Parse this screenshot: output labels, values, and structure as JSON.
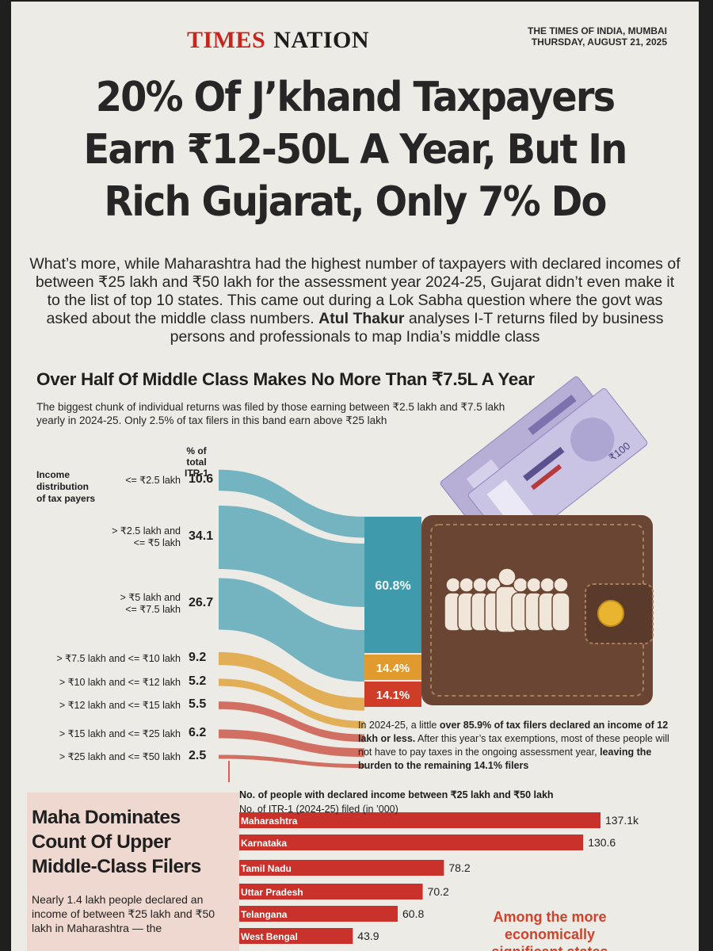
{
  "masthead": {
    "section_red": "TIMES",
    "section_black": "NATION"
  },
  "dateline": {
    "line1": "THE TIMES OF INDIA, MUMBAI",
    "line2": "THURSDAY, AUGUST 21, 2025"
  },
  "headline": {
    "line1": "20% Of J’khand Taxpayers",
    "line2": "Earn ₹12-50L A Year, But In",
    "line3": "Rich Gujarat, Only 7% Do"
  },
  "deck": {
    "part1": "What’s more, while Maharashtra had the highest number of taxpayers with declared incomes of between ₹25 lakh and ₹50 lakh for the assessment year 2024-25, Gujarat didn’t even make it to the list of top 10 states. This came out during a Lok Sabha question where the govt was asked about the middle class numbers. ",
    "author": "Atul Thakur",
    "part2": " analyses I-T returns filed by business persons and professionals to map India’s middle class"
  },
  "section": {
    "title": "Over Half Of Middle Class Makes No More Than ₹7.5L A Year",
    "subtitle": "The biggest chunk of individual returns was filed by those earning between ₹2.5 lakh and ₹7.5 lakh yearly in 2024-25. Only 2.5% of tax filers in this band earn above ₹25 lakh"
  },
  "flow_chart": {
    "axis_header_line1": "% of total",
    "axis_header_line2": "ITR-1",
    "side_label_line1": "Income",
    "side_label_line2": "distribution",
    "side_label_line3": "of tax payers"
  },
  "chart_data": [
    {
      "type": "bar",
      "title": "Over Half Of Middle Class Makes No More Than ₹7.5L A Year",
      "ylabel": "% of total ITR-1",
      "categories": [
        "<= ₹2.5 lakh",
        "> ₹2.5 lakh and <= ₹5 lakh",
        "> ₹5 lakh and <= ₹7.5 lakh",
        "> ₹7.5 lakh and <= ₹10 lakh",
        "> ₹10 lakh and <= ₹12 lakh",
        "> ₹12 lakh and <= ₹15 lakh",
        "> ₹15 lakh and <= ₹25 lakh",
        "> ₹25 lakh and <= ₹50 lakh"
      ],
      "value_labels": [
        "10.6",
        "34.1",
        "26.7",
        "9.2",
        "5.2",
        "5.5",
        "6.2",
        "2.5"
      ],
      "values": [
        10.6,
        34.1,
        26.7,
        9.2,
        5.2,
        5.5,
        6.2,
        2.5
      ],
      "label_lines": [
        [
          "<= ₹2.5 lakh"
        ],
        [
          "> ₹2.5 lakh and",
          "<= ₹5 lakh"
        ],
        [
          "> ₹5 lakh and",
          "<= ₹7.5 lakh"
        ],
        [
          "> ₹7.5 lakh and <= ₹10 lakh"
        ],
        [
          "> ₹10 lakh and <= ₹12 lakh"
        ],
        [
          "> ₹12 lakh and <= ₹15 lakh"
        ],
        [
          "> ₹15 lakh and <= ₹25 lakh"
        ],
        [
          "> ₹25 lakh and <= ₹50 lakh"
        ]
      ],
      "colors": [
        "#5fa9b8",
        "#5fa9b8",
        "#5fa9b8",
        "#e1a33c",
        "#e1a33c",
        "#cd5a4a",
        "#cd5a4a",
        "#cd5a4a"
      ],
      "groups": [
        {
          "label": "60.8%",
          "color": "#3f9aab"
        },
        {
          "label": "14.4%",
          "color": "#e19a2e"
        },
        {
          "label": "14.1%",
          "color": "#cf3d28"
        }
      ]
    },
    {
      "type": "bar",
      "orientation": "horizontal",
      "title": "No. of people with declared income between ₹25 lakh and ₹50 lakh",
      "subtitle": "No. of ITR-1 (2024-25) filed (in ’000)",
      "categories": [
        "Maharashtra",
        "Karnataka",
        "Tamil Nadu",
        "Uttar Pradesh",
        "Telangana",
        "West Bengal"
      ],
      "value_labels": [
        "137.1k",
        "130.6",
        "78.2",
        "70.2",
        "60.8",
        "43.9"
      ],
      "values": [
        137.1,
        130.6,
        78.2,
        70.2,
        60.8,
        43.9
      ],
      "color": "#c9322a"
    }
  ],
  "note": {
    "part1": "In 2024-25, a little ",
    "bold1": "over 85.9% of tax filers declared an income of 12 lakh or less.",
    "part2": " After this year’s tax exemptions, most of these people will not have to pay taxes in the ongoing assessment year, ",
    "bold2": "leaving the burden to the remaining 14.1% filers"
  },
  "maha": {
    "title": "Maha Dominates Count Of Upper Middle-Class Filers",
    "body": "Nearly 1.4 lakh people declared an income of between ₹25 lakh and ₹50 lakh in Maharashtra — the"
  },
  "bar_chart": {
    "header": "No. of people with declared income between ₹25 lakh and ₹50 lakh",
    "subheader": "No. of ITR-1 (2024-25) filed (in ’000)"
  },
  "among": {
    "text": "Among the more economically significant states"
  },
  "illustration": {
    "note_label": "₹100",
    "wallet_icon": "wallet-icon",
    "people_icon": "people-group-icon"
  },
  "colors": {
    "teal": "#3f9aab",
    "amber": "#e19a2e",
    "red": "#cf3d28",
    "wallet": "#6a4533",
    "masthead_red": "#c8261d"
  }
}
